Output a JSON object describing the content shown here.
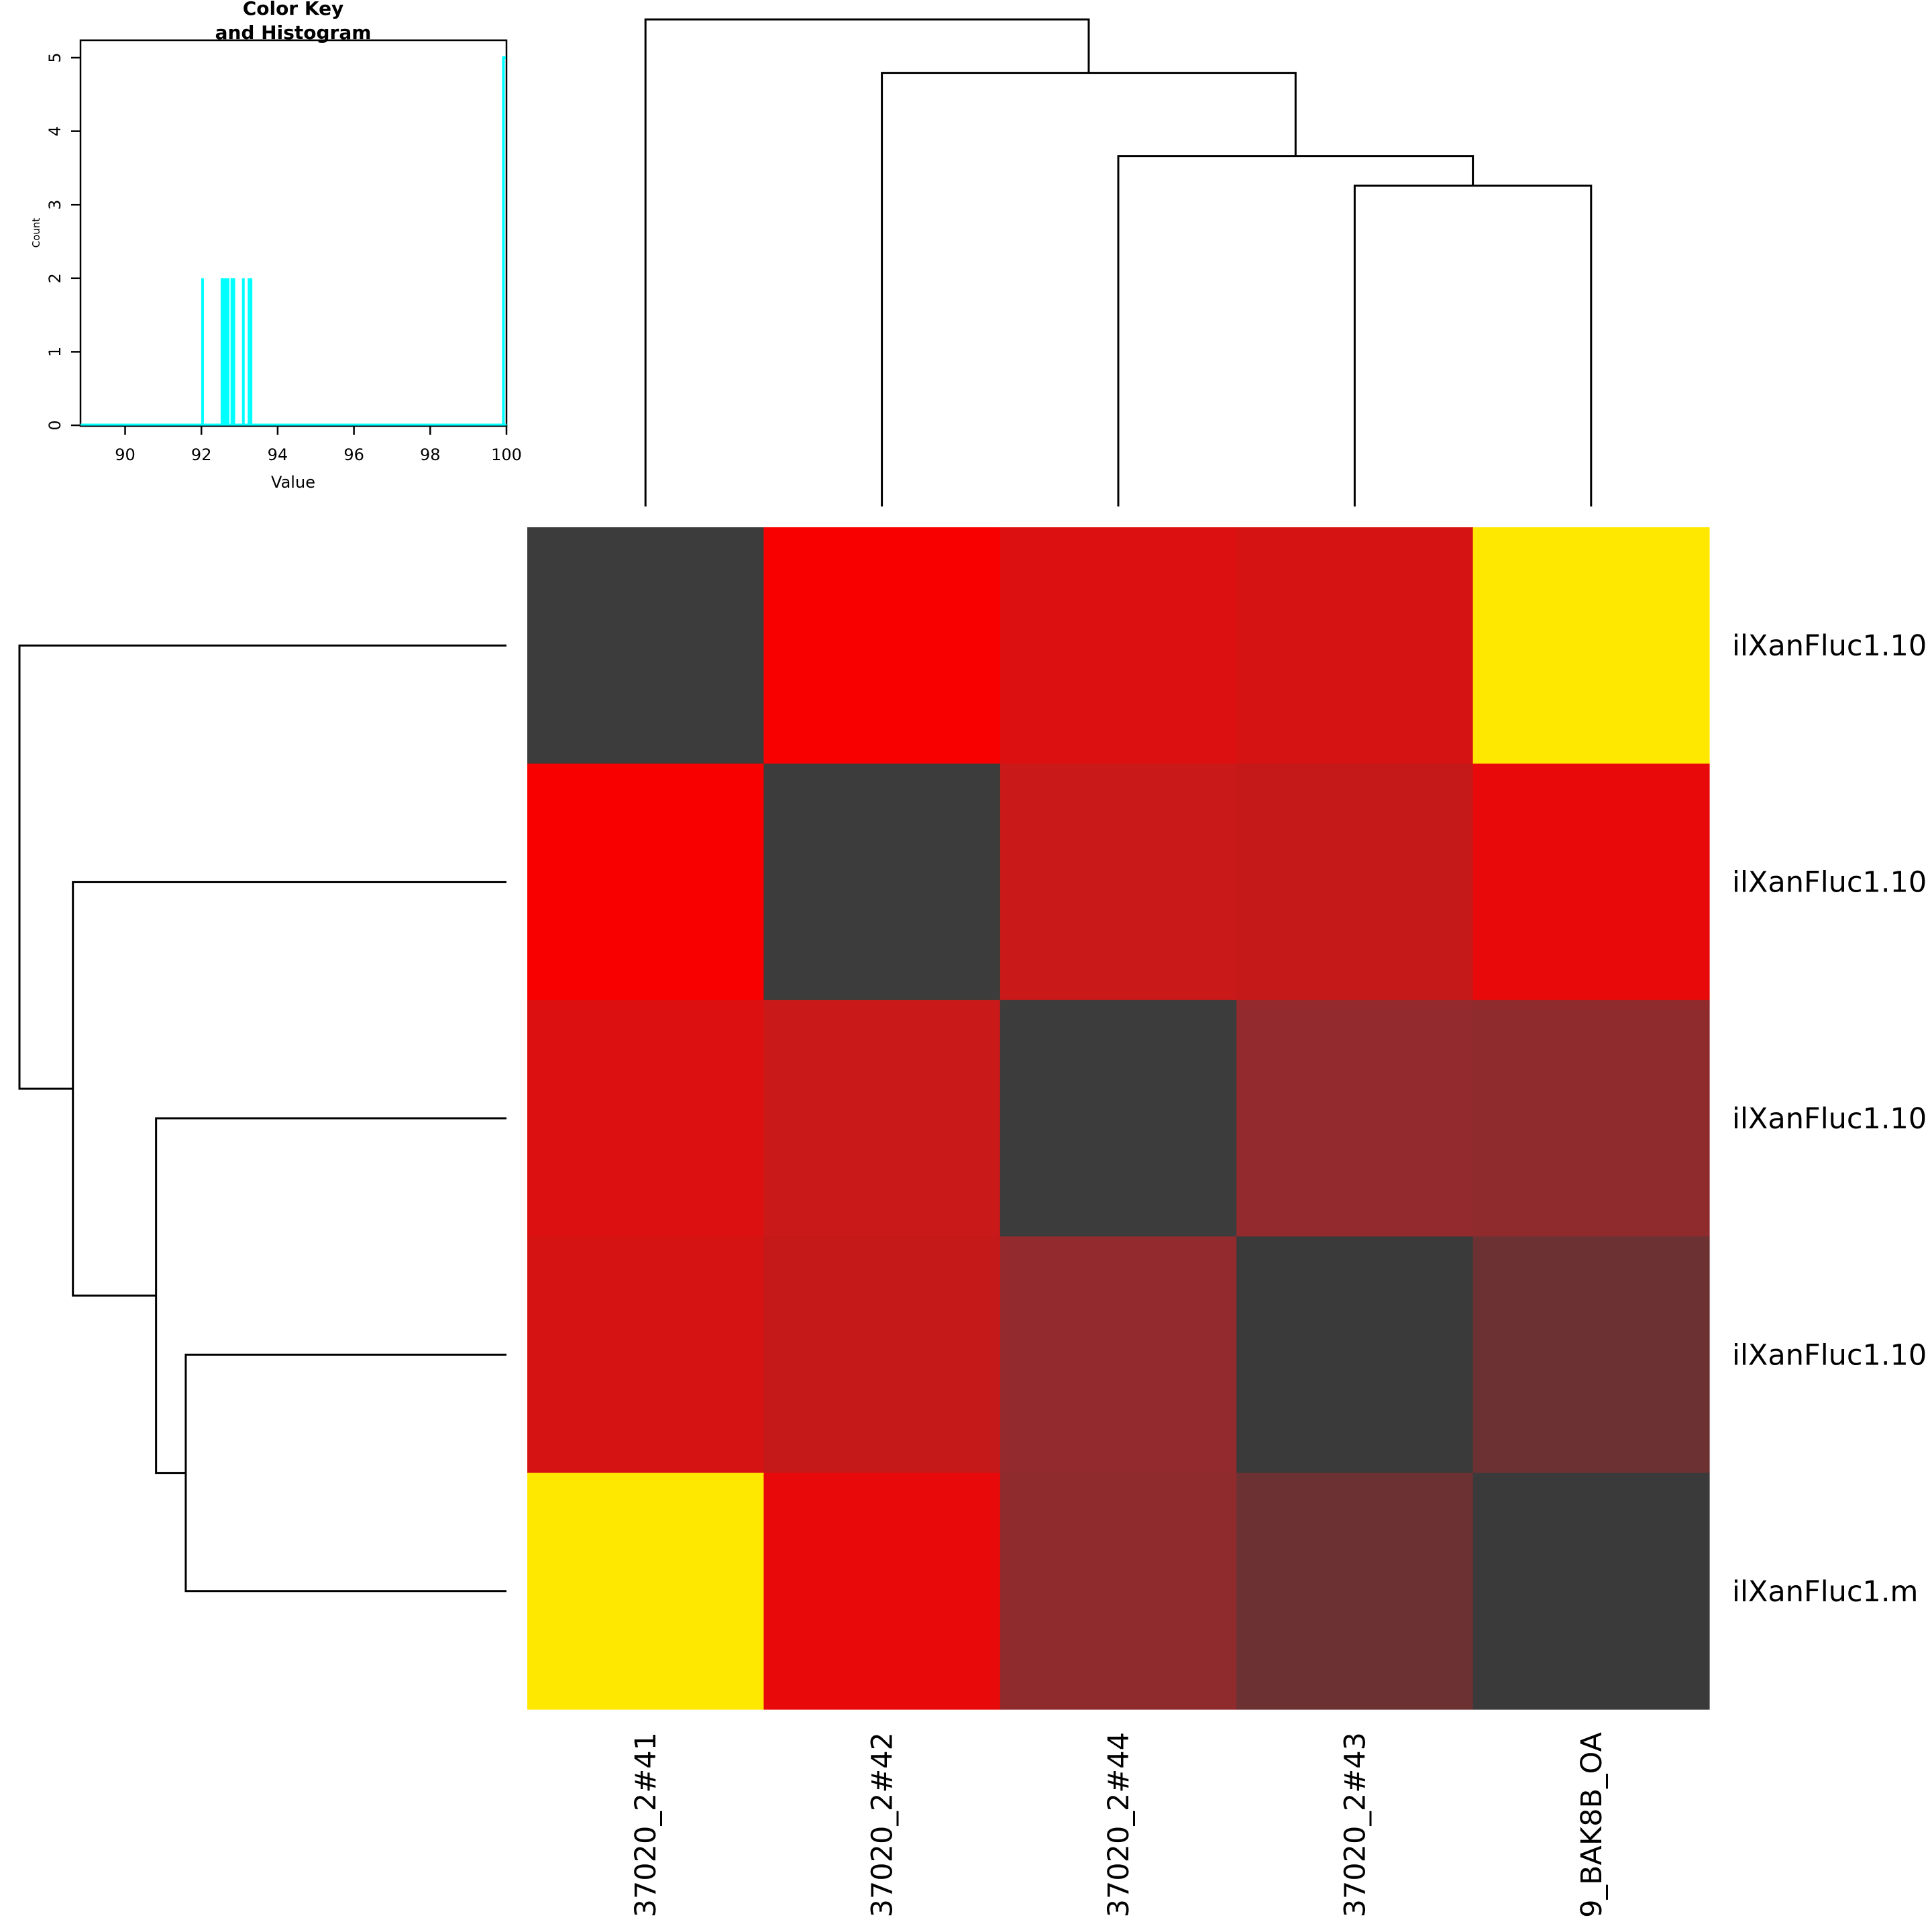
{
  "chart_data": [
    {
      "type": "heatmap",
      "title": "",
      "row_labels": [
        "ilXanFluc1.10",
        "ilXanFluc1.10",
        "ilXanFluc1.10",
        "ilXanFluc1.10",
        "ilXanFluc1.m"
      ],
      "column_labels": [
        "37020_2#41",
        "37020_2#42",
        "37020_2#44",
        "37020_2#43",
        "9_BAK8B_OA"
      ],
      "values": [
        [
          100.0,
          93.25,
          92.85,
          92.8,
          93.3
        ],
        [
          93.25,
          100.0,
          92.7,
          92.65,
          93.1
        ],
        [
          92.85,
          92.7,
          100.0,
          92.6,
          92.54
        ],
        [
          92.8,
          92.65,
          92.6,
          100.0,
          92.03
        ],
        [
          93.3,
          93.1,
          92.54,
          92.03,
          100.0
        ]
      ],
      "cell_colors": [
        [
          "#3c3c3c",
          "#f80000",
          "#dc1010",
          "#d61313",
          "#ffe800"
        ],
        [
          "#f80000",
          "#3c3c3c",
          "#c91919",
          "#c51818",
          "#e80a0a"
        ],
        [
          "#dc1010",
          "#c91919",
          "#3c3c3c",
          "#932a2e",
          "#8f2a2d"
        ],
        [
          "#d61313",
          "#c51818",
          "#932a2e",
          "#3a3a3a",
          "#6c3132"
        ],
        [
          "#ffe800",
          "#e80a0a",
          "#8f2a2d",
          "#6c3132",
          "#3a3a3a"
        ]
      ],
      "column_dendrogram": {
        "merges": [
          {
            "left": 3,
            "right": 4,
            "height": 0.54
          },
          {
            "left": 2,
            "right": "m1",
            "height": 0.59
          },
          {
            "left": 1,
            "right": "m2",
            "height": 0.73
          },
          {
            "left": 0,
            "right": "m3",
            "height": 0.82
          }
        ]
      },
      "row_dendrogram": {
        "merges": [
          {
            "top": 3,
            "bottom": 4,
            "height": 0.54
          },
          {
            "top": 2,
            "bottom": "m1",
            "height": 0.59
          },
          {
            "top": 1,
            "bottom": "m2",
            "height": 0.73
          },
          {
            "top": 0,
            "bottom": "m3",
            "height": 0.82
          }
        ]
      }
    },
    {
      "type": "line",
      "title": "Color Key\nand Histogram",
      "title_lines": [
        "Color Key",
        "and Histogram"
      ],
      "xlabel": "Value",
      "ylabel": "Count",
      "xlim": [
        88.83,
        100
      ],
      "ylim": [
        0,
        5.2
      ],
      "x_ticks": [
        90,
        92,
        94,
        96,
        98,
        100
      ],
      "y_ticks": [
        0,
        1,
        2,
        3,
        4,
        5
      ],
      "line_color": "#00ffff",
      "spikes": [
        {
          "x": 92.03,
          "count": 2
        },
        {
          "x": 92.54,
          "count": 2
        },
        {
          "x": 92.6,
          "count": 2
        },
        {
          "x": 92.65,
          "count": 2
        },
        {
          "x": 92.7,
          "count": 2
        },
        {
          "x": 92.8,
          "count": 2
        },
        {
          "x": 92.85,
          "count": 2
        },
        {
          "x": 93.1,
          "count": 2
        },
        {
          "x": 93.25,
          "count": 2
        },
        {
          "x": 93.3,
          "count": 2
        },
        {
          "x": 99.92,
          "count": 5
        }
      ]
    }
  ]
}
